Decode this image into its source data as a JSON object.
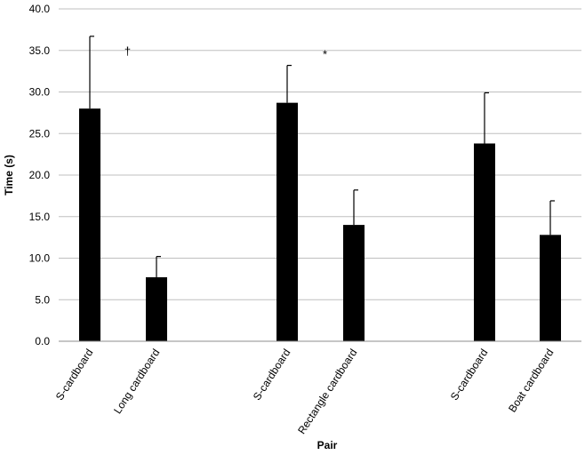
{
  "chart_data": {
    "type": "bar",
    "categories": [
      "S-cardboard",
      "Long cardboard",
      "S-cardboard",
      "Rectangle cardboard",
      "S-cardboard",
      "Boat cardboard"
    ],
    "values": [
      28.0,
      7.7,
      28.7,
      14.0,
      23.8,
      12.8
    ],
    "error_upper": [
      8.7,
      2.5,
      4.5,
      4.2,
      6.1,
      4.1
    ],
    "xlabel": "Pair",
    "ylabel": "Time (s)",
    "ylim": [
      0,
      40
    ],
    "yticks": [
      "0.0",
      "5.0",
      "10.0",
      "15.0",
      "20.0",
      "25.0",
      "30.0",
      "35.0",
      "40.0"
    ],
    "grid": true,
    "legend": "none",
    "annotations": [
      {
        "text": "†",
        "x_between": [
          0,
          1
        ],
        "y": 35.0
      },
      {
        "text": "*",
        "x_between": [
          2,
          3
        ],
        "y": 34.6
      }
    ],
    "bar_color": "#000000",
    "grid_color": "#bfbfbf"
  }
}
